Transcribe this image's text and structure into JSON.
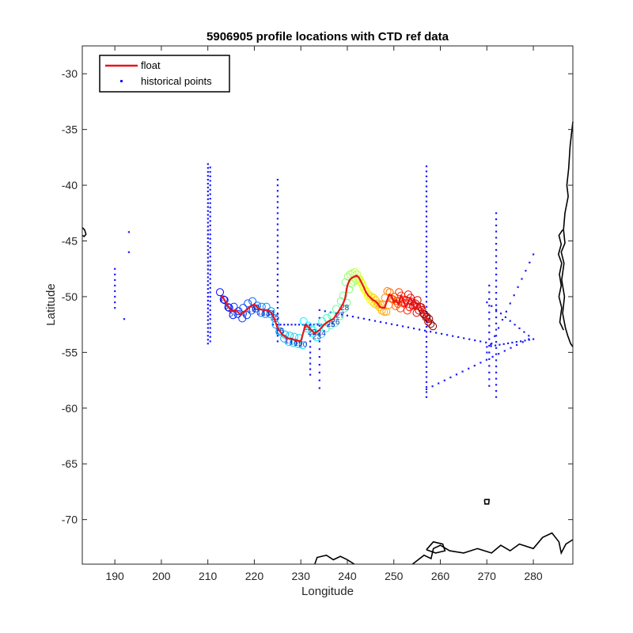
{
  "chart_data": {
    "type": "scatter",
    "title": "5906905 profile locations with CTD ref data",
    "xlabel": "Longitude",
    "ylabel": "Latitude",
    "xlim": [
      183,
      288.5
    ],
    "ylim": [
      -74,
      -27.5
    ],
    "xticks": [
      190,
      200,
      210,
      220,
      230,
      240,
      250,
      260,
      270,
      280
    ],
    "yticks": [
      -30,
      -35,
      -40,
      -45,
      -50,
      -55,
      -60,
      -65,
      -70
    ],
    "xtick_labels": [
      "190",
      "200",
      "210",
      "220",
      "230",
      "240",
      "250",
      "260",
      "270",
      "280"
    ],
    "ytick_labels": [
      "-30",
      "-35",
      "-40",
      "-45",
      "-50",
      "-55",
      "-60",
      "-65",
      "-70"
    ],
    "grid": false,
    "legend": {
      "position": "top-left",
      "entries": [
        {
          "label": "float",
          "color": "#e8161b",
          "marker": "line"
        },
        {
          "label": "historical points",
          "color": "#1a1aff",
          "marker": "point"
        }
      ]
    },
    "series": [
      {
        "name": "float",
        "color": "#e8161b",
        "profile_colormap": "jet",
        "x": [
          213,
          214,
          215,
          216,
          217,
          218,
          219,
          220,
          221,
          222,
          223,
          224,
          225,
          226,
          227,
          228,
          229,
          230,
          231,
          232,
          233,
          234,
          235,
          236,
          237,
          238,
          239,
          239.5,
          240,
          240.5,
          241,
          241.5,
          242,
          242.5,
          243,
          243.5,
          244,
          244.5,
          245,
          245.5,
          246,
          246.5,
          247,
          247.5,
          248,
          248.5,
          249,
          249.5,
          250,
          250.5,
          251,
          251.5,
          252,
          252.5,
          253,
          253.5,
          254,
          254.5,
          255,
          255.5,
          256,
          256.5,
          257,
          257.5,
          258
        ],
        "y": [
          -49.9,
          -50.6,
          -51.3,
          -51.2,
          -51.6,
          -51.3,
          -50.9,
          -50.7,
          -51.1,
          -51.2,
          -51.2,
          -51.6,
          -52.8,
          -53.4,
          -53.7,
          -53.8,
          -53.9,
          -54.0,
          -52.5,
          -52.9,
          -53.3,
          -53.0,
          -52.5,
          -52.2,
          -52.0,
          -51.4,
          -50.7,
          -50.2,
          -49.0,
          -48.5,
          -48.3,
          -48.2,
          -48.1,
          -48.3,
          -48.7,
          -49.1,
          -49.6,
          -49.9,
          -50.1,
          -50.3,
          -50.4,
          -50.6,
          -50.9,
          -51.0,
          -51.0,
          -50.4,
          -49.8,
          -49.9,
          -50.5,
          -50.3,
          -50.7,
          -49.9,
          -50.2,
          -50.9,
          -50.6,
          -50.1,
          -50.4,
          -51.1,
          -50.9,
          -50.6,
          -51.2,
          -51.5,
          -51.9,
          -52.1,
          -52.3
        ]
      },
      {
        "name": "historical points",
        "color": "#1a1aff",
        "marker": "point",
        "groups": [
          {
            "x": [
              190,
              190,
              190,
              190,
              190,
              190,
              190,
              190
            ],
            "y": [
              -47.5,
              -48,
              -48.5,
              -49,
              -49.5,
              -50,
              -50.5,
              -51
            ]
          },
          {
            "x": [
              193,
              193,
              192
            ],
            "y": [
              -44.2,
              -46,
              -52
            ]
          },
          {
            "x_line": 210,
            "y_range": [
              -54.2,
              -37.8
            ],
            "step": 0.35
          },
          {
            "x_line": 210.5,
            "y_range": [
              -54,
              -38.2
            ],
            "step": 0.4
          },
          {
            "x_line": 225,
            "y_range": [
              -54,
              -39.3
            ],
            "step": 0.5
          },
          {
            "x_line": 232,
            "y_range": [
              -57,
              -52.5
            ],
            "step": 0.5
          },
          {
            "x_line": 234,
            "y_range": [
              -58.2,
              -51.5
            ],
            "step": 0.7
          },
          {
            "x_line": 257,
            "y_range": [
              -59,
              -38.3
            ],
            "step": 0.45
          },
          {
            "x_line": 272,
            "y_range": [
              -59,
              -42.2
            ],
            "step": 0.55
          },
          {
            "x_line": 270.5,
            "y_range": [
              -58,
              -48.5
            ],
            "step": 0.6
          },
          {
            "segment": [
              [
                234,
                -51.2
              ],
              [
                271,
                -54.2
              ]
            ],
            "step": 1.2
          },
          {
            "segment": [
              [
                257,
                -58.3
              ],
              [
                279,
                -53.8
              ]
            ],
            "step": 1.3
          },
          {
            "segment": [
              [
                270,
                -54.5
              ],
              [
                280,
                -53.8
              ]
            ],
            "step": 0.9
          },
          {
            "segment": [
              [
                270,
                -50.5
              ],
              [
                279,
                -53.5
              ]
            ],
            "step": 1.1
          },
          {
            "segment": [
              [
                270,
                -55
              ],
              [
                280,
                -46.2
              ]
            ],
            "step": 1.1
          },
          {
            "segment": [
              [
                224,
                -52.5
              ],
              [
                236,
                -52.5
              ]
            ],
            "step": 0.8
          }
        ]
      }
    ],
    "profile_number_labels": [
      "1",
      "3",
      "5",
      "7",
      "9",
      "10",
      "11",
      "12",
      "13",
      "14",
      "15",
      "16",
      "17",
      "18",
      "19",
      "20",
      "21",
      "22",
      "23",
      "24",
      "25",
      "26",
      "27",
      "28"
    ],
    "coastline_color": "#000000"
  }
}
